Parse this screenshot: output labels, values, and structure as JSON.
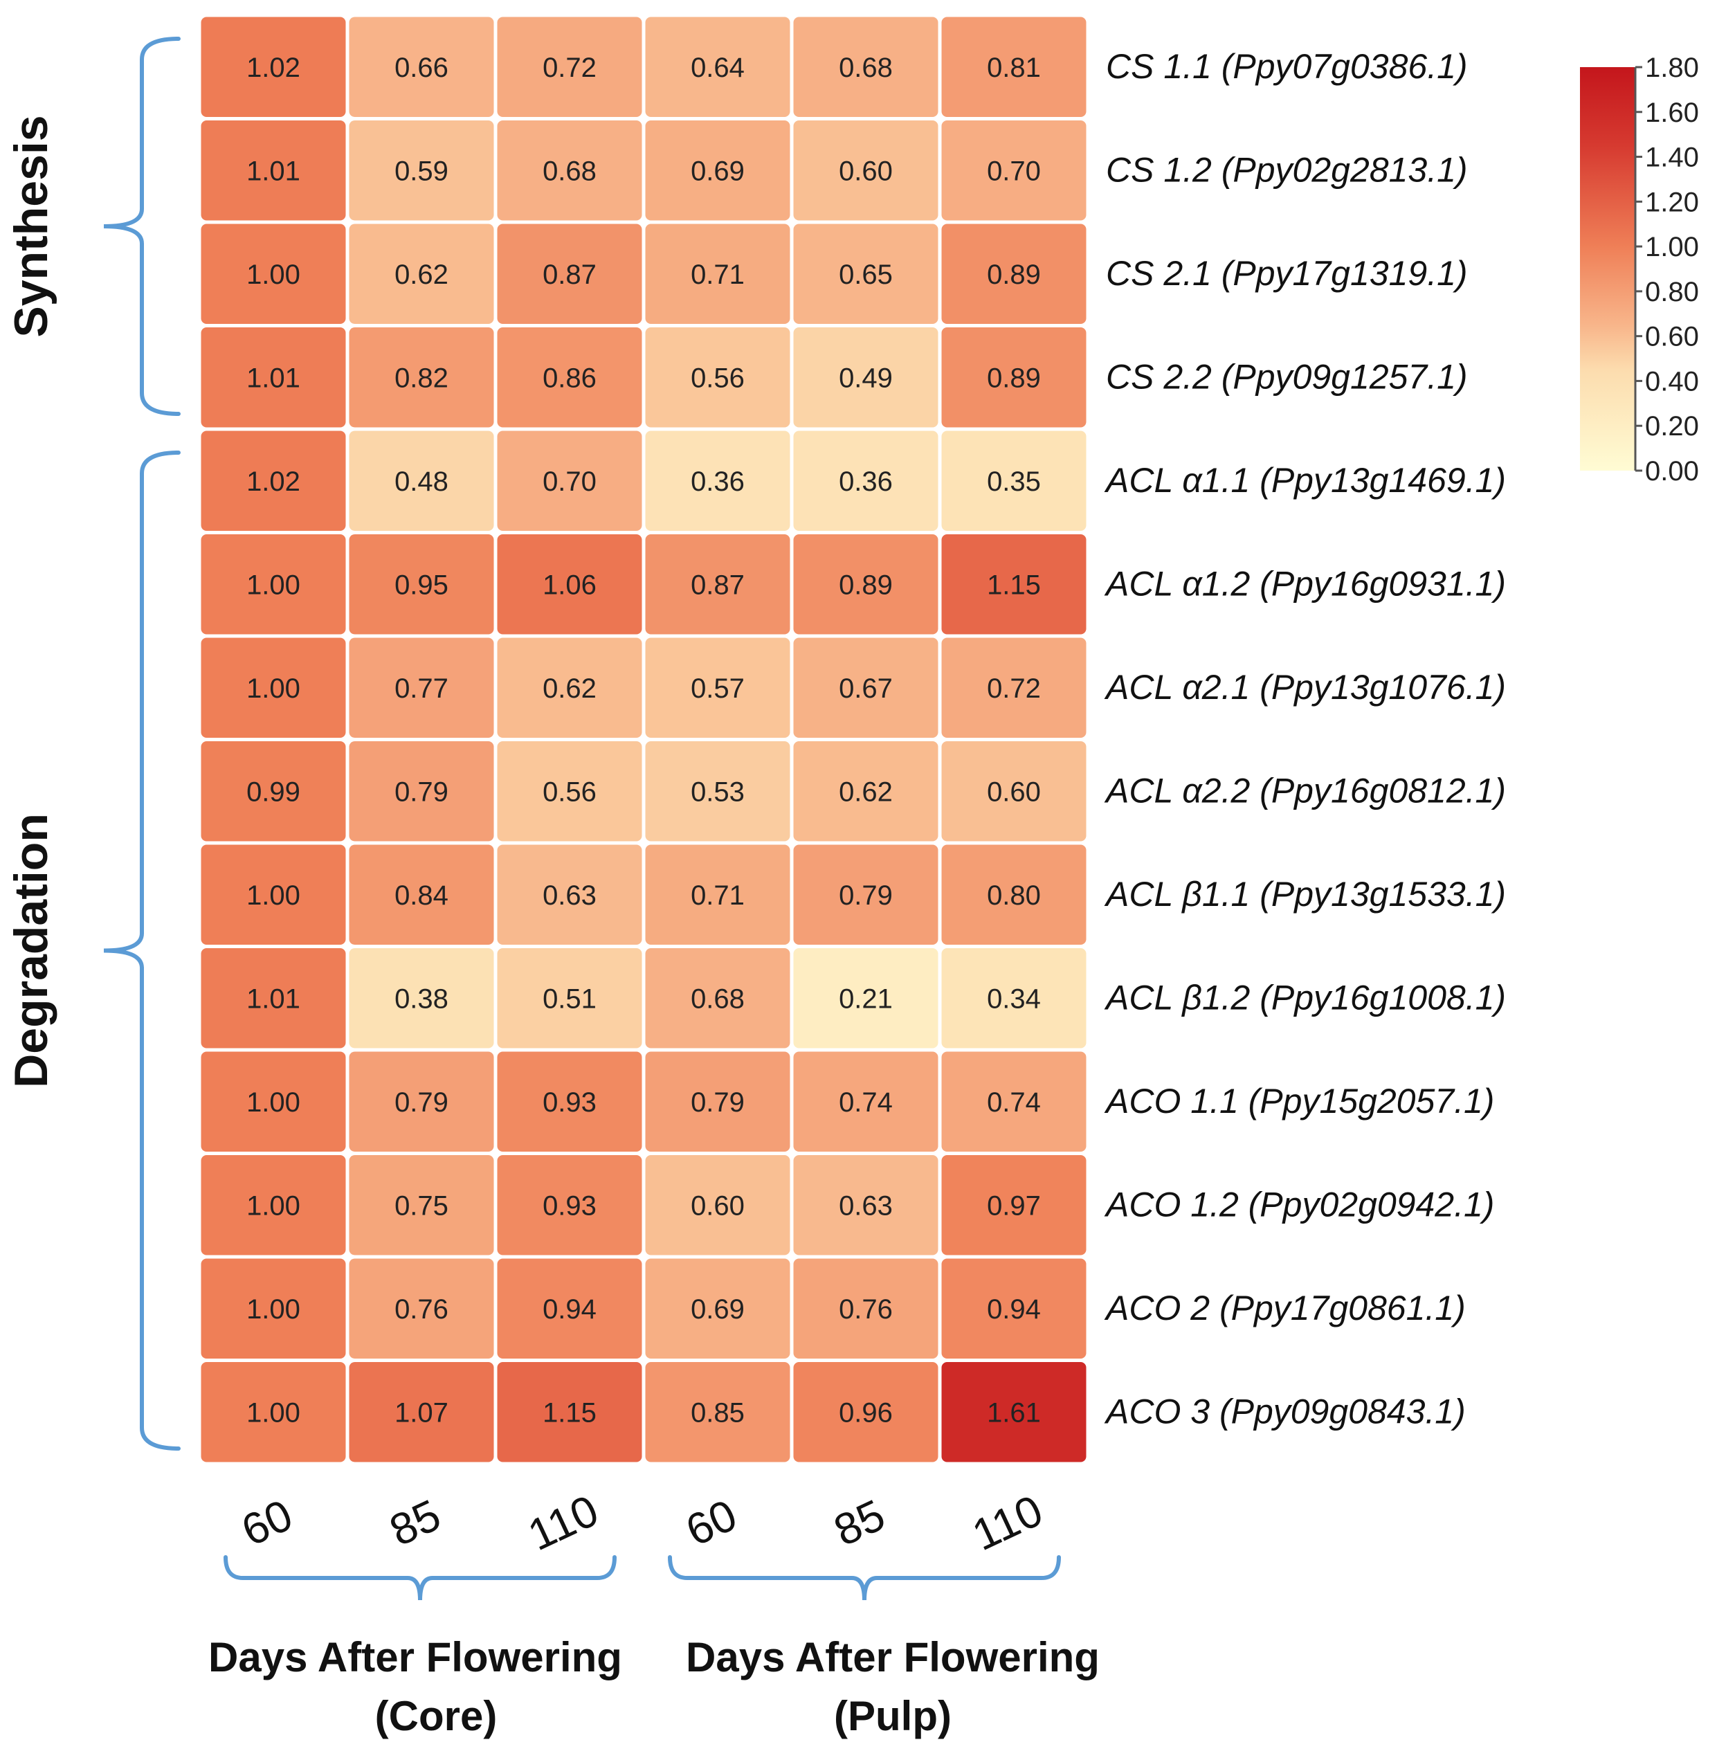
{
  "chart_data": {
    "type": "heatmap",
    "rows": [
      "CS 1.1 (Ppy07g0386.1)",
      "CS 1.2 (Ppy02g2813.1)",
      "CS 2.1 (Ppy17g1319.1)",
      "CS 2.2 (Ppy09g1257.1)",
      "ACL α1.1 (Ppy13g1469.1)",
      "ACL α1.2 (Ppy16g0931.1)",
      "ACL α2.1 (Ppy13g1076.1)",
      "ACL α2.2 (Ppy16g0812.1)",
      "ACL β1.1 (Ppy13g1533.1)",
      "ACL β1.2 (Ppy16g1008.1)",
      "ACO 1.1 (Ppy15g2057.1)",
      "ACO 1.2 (Ppy02g0942.1)",
      "ACO 2 (Ppy17g0861.1)",
      "ACO 3 (Ppy09g0843.1)"
    ],
    "columns": [
      "60",
      "85",
      "110",
      "60",
      "85",
      "110"
    ],
    "values": [
      [
        "1.02",
        "0.66",
        "0.72",
        "0.64",
        "0.68",
        "0.81"
      ],
      [
        "1.01",
        "0.59",
        "0.68",
        "0.69",
        "0.60",
        "0.70"
      ],
      [
        "1.00",
        "0.62",
        "0.87",
        "0.71",
        "0.65",
        "0.89"
      ],
      [
        "1.01",
        "0.82",
        "0.86",
        "0.56",
        "0.49",
        "0.89"
      ],
      [
        "1.02",
        "0.48",
        "0.70",
        "0.36",
        "0.36",
        "0.35"
      ],
      [
        "1.00",
        "0.95",
        "1.06",
        "0.87",
        "0.89",
        "1.15"
      ],
      [
        "1.00",
        "0.77",
        "0.62",
        "0.57",
        "0.67",
        "0.72"
      ],
      [
        "0.99",
        "0.79",
        "0.56",
        "0.53",
        "0.62",
        "0.60"
      ],
      [
        "1.00",
        "0.84",
        "0.63",
        "0.71",
        "0.79",
        "0.80"
      ],
      [
        "1.01",
        "0.38",
        "0.51",
        "0.68",
        "0.21",
        "0.34"
      ],
      [
        "1.00",
        "0.79",
        "0.93",
        "0.79",
        "0.74",
        "0.74"
      ],
      [
        "1.00",
        "0.75",
        "0.93",
        "0.60",
        "0.63",
        "0.97"
      ],
      [
        "1.00",
        "0.76",
        "0.94",
        "0.69",
        "0.76",
        "0.94"
      ],
      [
        "1.00",
        "1.07",
        "1.15",
        "0.85",
        "0.96",
        "1.61"
      ]
    ],
    "row_groups": [
      {
        "label": "Synthesis",
        "first_row": 0,
        "last_row": 3
      },
      {
        "label": "Degradation",
        "first_row": 4,
        "last_row": 13
      }
    ],
    "column_groups": [
      {
        "label_line1": "Days After Flowering",
        "label_line2": "(Core)",
        "first_col": 0,
        "last_col": 2
      },
      {
        "label_line1": "Days After Flowering",
        "label_line2": "(Pulp)",
        "first_col": 3,
        "last_col": 5
      }
    ],
    "colorbar": {
      "min": 0,
      "max": 1.8,
      "ticks": [
        "1.80",
        "1.60",
        "1.40",
        "1.20",
        "1.00",
        "0.80",
        "0.60",
        "0.40",
        "0.20",
        "0.00"
      ]
    },
    "colors": {
      "low": "#fffcd4",
      "mid_low": "#fcdcae",
      "mid": "#f8b58a",
      "mid_high": "#ef7f57",
      "high": "#d63a30",
      "max": "#c4161c",
      "bracket": "#5b9bd5",
      "cell_gap": "#ffffff"
    }
  }
}
